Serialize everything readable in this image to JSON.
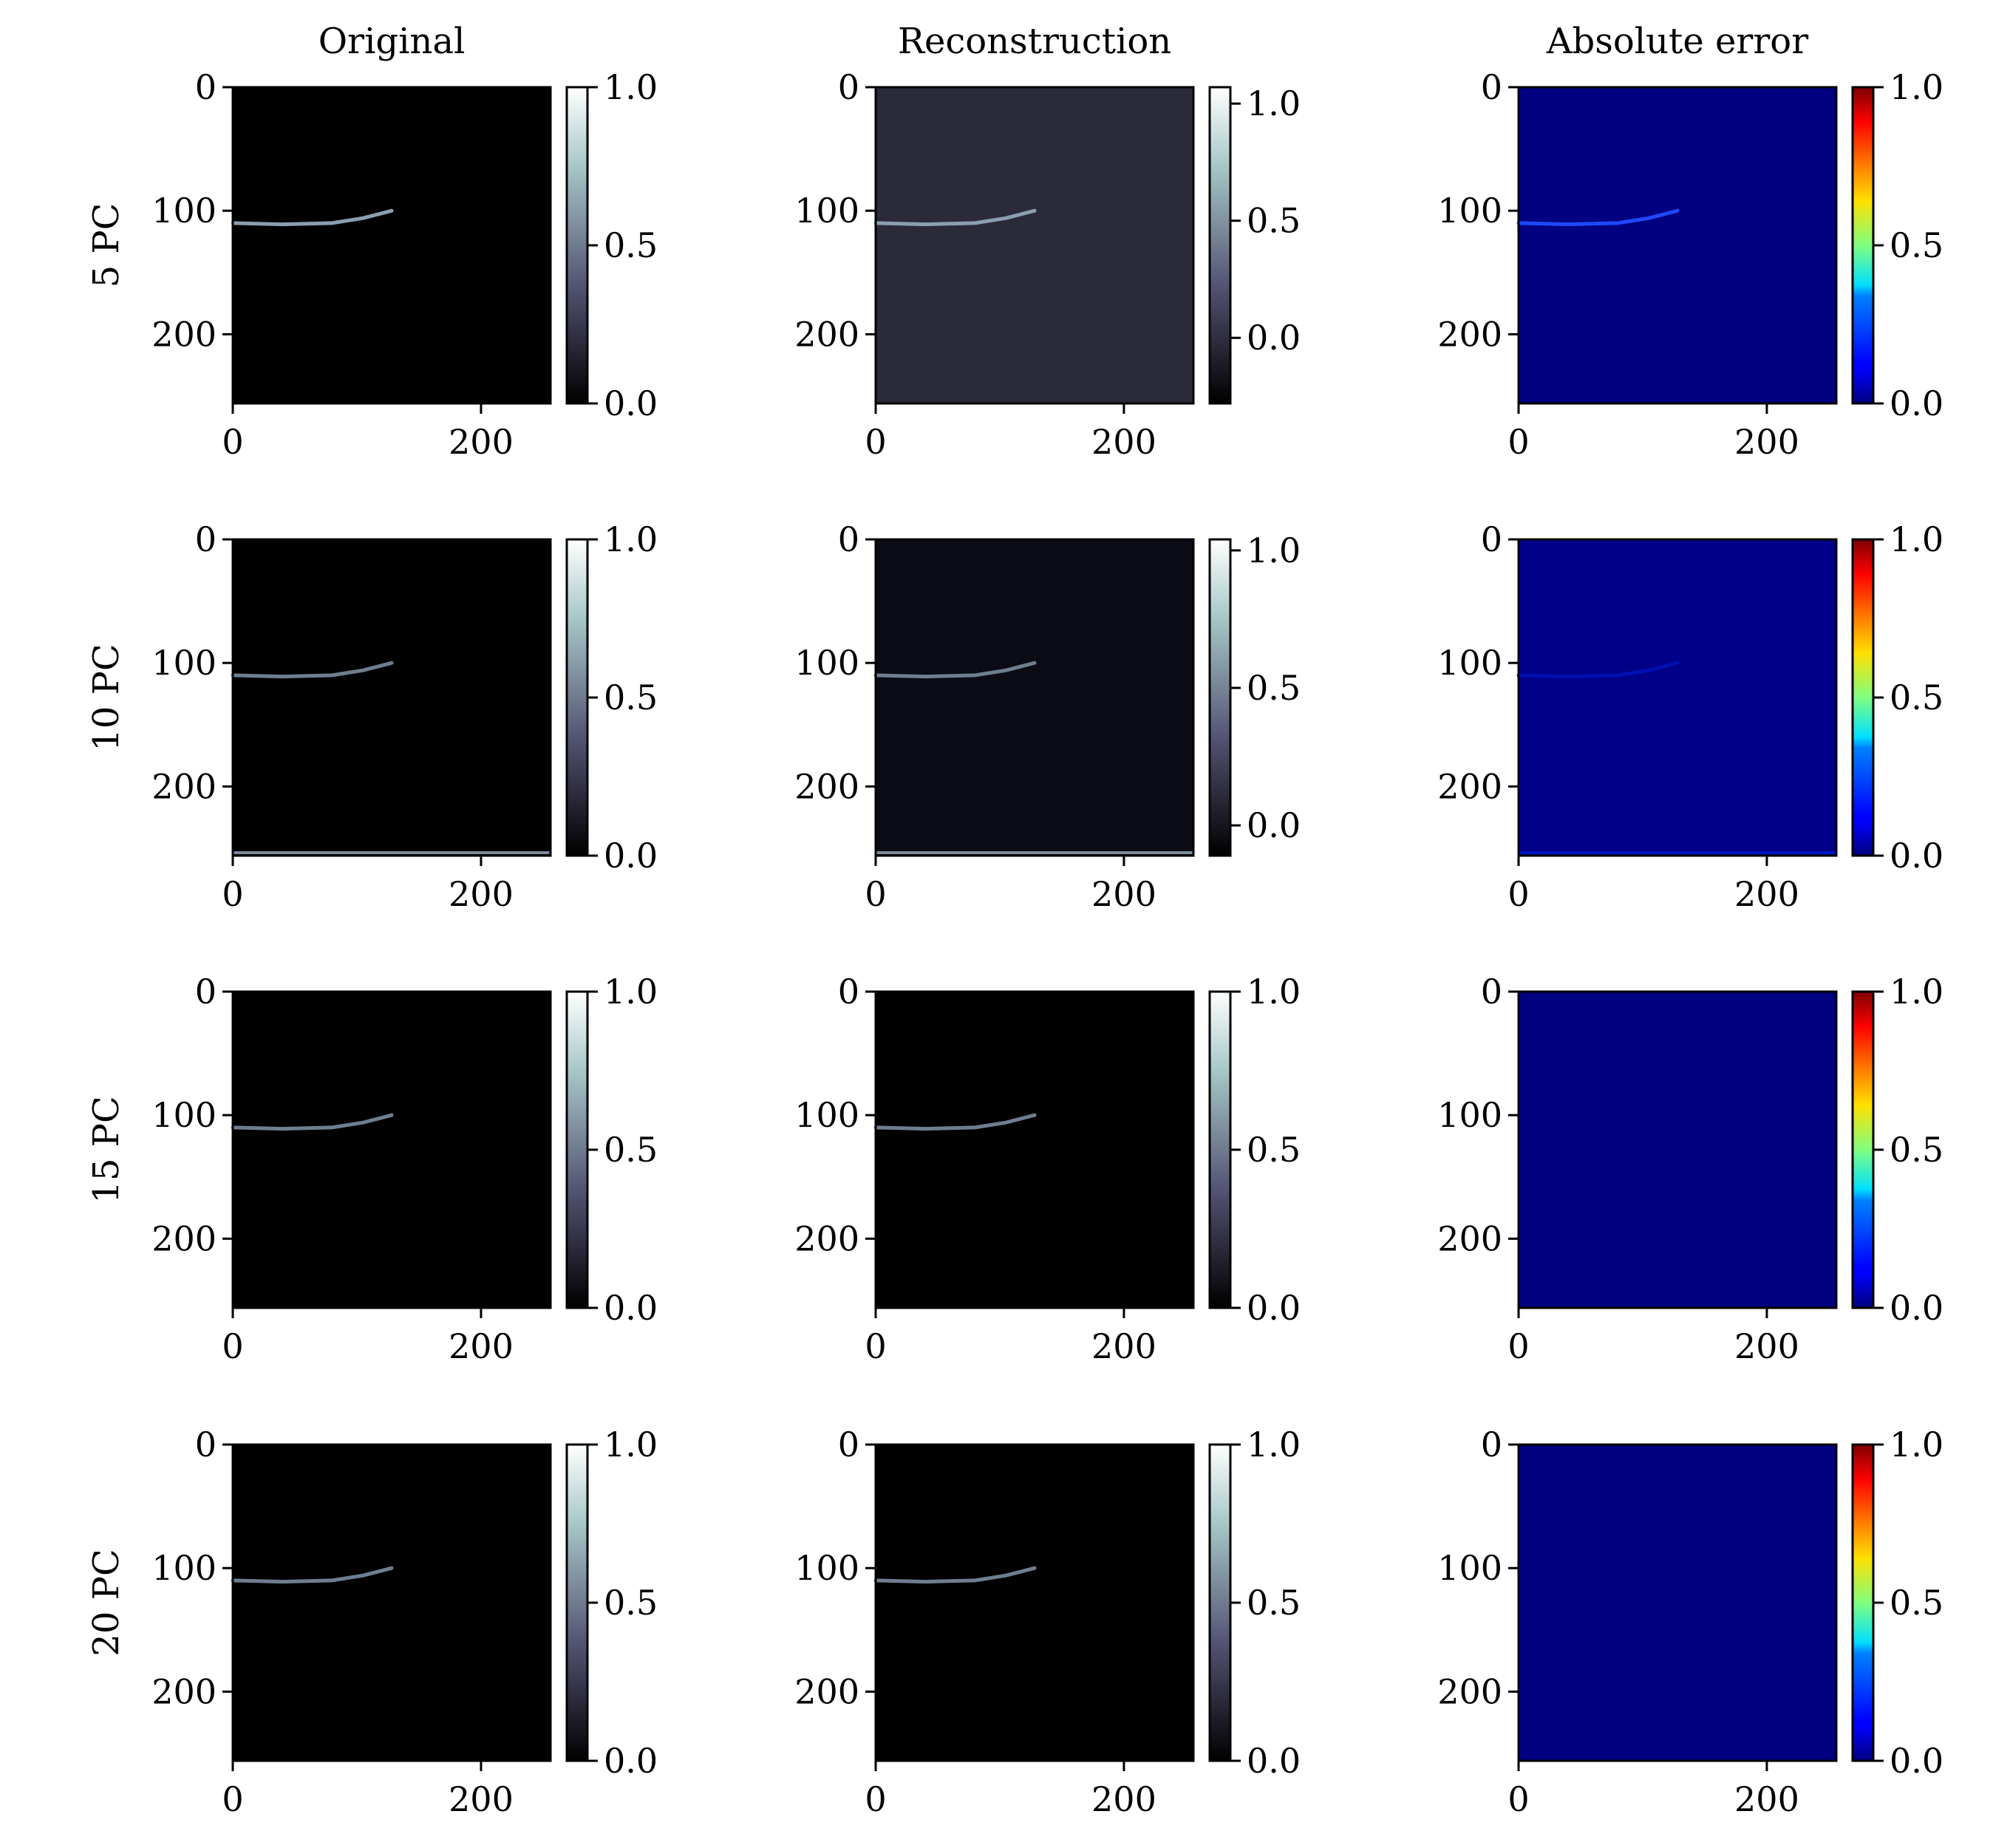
{
  "chart_data": {
    "type": "heatmap",
    "grid": {
      "columns": [
        {
          "title": "Original",
          "colormap": "bone"
        },
        {
          "title": "Reconstruction",
          "colormap": "bone"
        },
        {
          "title": "Absolute error",
          "colormap": "jet"
        }
      ],
      "rows": [
        {
          "label": "5 PC"
        },
        {
          "label": "10 PC"
        },
        {
          "label": "15 PC"
        },
        {
          "label": "20 PC"
        }
      ]
    },
    "image_axes": {
      "xlim": [
        0,
        256
      ],
      "ylim": [
        256,
        0
      ],
      "x_ticks": [
        0,
        200
      ],
      "y_ticks": [
        0,
        100,
        200
      ],
      "x_tick_labels": [
        "0",
        "200"
      ],
      "y_tick_labels": [
        "0",
        "100",
        "200"
      ]
    },
    "curve": {
      "description_points": [
        [
          0,
          110
        ],
        [
          40,
          111
        ],
        [
          80,
          110
        ],
        [
          105,
          106
        ],
        [
          128,
          100
        ]
      ]
    },
    "panels": [
      {
        "row": 0,
        "col": 0,
        "background": "#000000",
        "curve_color": "#8a9fb0",
        "curve_opacity": 1.0,
        "bottom_line": false,
        "cbar": {
          "vmin": 0.0,
          "vmax": 1.0,
          "ticks": [
            0.0,
            0.5,
            1.0
          ],
          "labels": [
            "0.0",
            "0.5",
            "1.0"
          ]
        }
      },
      {
        "row": 0,
        "col": 1,
        "background": "#2a2a38",
        "curve_color": "#8a9fb0",
        "curve_opacity": 1.0,
        "bottom_line": false,
        "cbar": {
          "vmin": -0.28,
          "vmax": 1.07,
          "ticks": [
            0.0,
            0.5,
            1.0
          ],
          "labels": [
            "0.0",
            "0.5",
            "1.0"
          ]
        }
      },
      {
        "row": 0,
        "col": 2,
        "background": "#000080",
        "curve_color": "#1f48ff",
        "curve_opacity": 1.0,
        "bottom_line": false,
        "cbar": {
          "vmin": 0.0,
          "vmax": 1.0,
          "ticks": [
            0.0,
            0.5,
            1.0
          ],
          "labels": [
            "0.0",
            "0.5",
            "1.0"
          ]
        }
      },
      {
        "row": 1,
        "col": 0,
        "background": "#000000",
        "curve_color": "#6d7e8f",
        "curve_opacity": 1.0,
        "bottom_line": true,
        "cbar": {
          "vmin": 0.0,
          "vmax": 1.0,
          "ticks": [
            0.0,
            0.5,
            1.0
          ],
          "labels": [
            "0.0",
            "0.5",
            "1.0"
          ]
        }
      },
      {
        "row": 1,
        "col": 1,
        "background": "#0a0b14",
        "curve_color": "#6d7e8f",
        "curve_opacity": 1.0,
        "bottom_line": true,
        "cbar": {
          "vmin": -0.11,
          "vmax": 1.04,
          "ticks": [
            0.0,
            0.5,
            1.0
          ],
          "labels": [
            "0.0",
            "0.5",
            "1.0"
          ]
        }
      },
      {
        "row": 1,
        "col": 2,
        "background": "#000088",
        "curve_color": "#0010b0",
        "curve_opacity": 1.0,
        "bottom_line": true,
        "cbar": {
          "vmin": 0.0,
          "vmax": 1.0,
          "ticks": [
            0.0,
            0.5,
            1.0
          ],
          "labels": [
            "0.0",
            "0.5",
            "1.0"
          ]
        }
      },
      {
        "row": 2,
        "col": 0,
        "background": "#000000",
        "curve_color": "#6d7e8f",
        "curve_opacity": 1.0,
        "bottom_line": false,
        "cbar": {
          "vmin": 0.0,
          "vmax": 1.0,
          "ticks": [
            0.0,
            0.5,
            1.0
          ],
          "labels": [
            "0.0",
            "0.5",
            "1.0"
          ]
        }
      },
      {
        "row": 2,
        "col": 1,
        "background": "#000000",
        "curve_color": "#6d7e8f",
        "curve_opacity": 1.0,
        "bottom_line": false,
        "cbar": {
          "vmin": 0.0,
          "vmax": 1.0,
          "ticks": [
            0.0,
            0.5,
            1.0
          ],
          "labels": [
            "0.0",
            "0.5",
            "1.0"
          ]
        }
      },
      {
        "row": 2,
        "col": 2,
        "background": "#000080",
        "curve_color": "#000080",
        "curve_opacity": 0.0,
        "bottom_line": false,
        "cbar": {
          "vmin": 0.0,
          "vmax": 1.0,
          "ticks": [
            0.0,
            0.5,
            1.0
          ],
          "labels": [
            "0.0",
            "0.5",
            "1.0"
          ]
        }
      },
      {
        "row": 3,
        "col": 0,
        "background": "#000000",
        "curve_color": "#6d7e8f",
        "curve_opacity": 1.0,
        "bottom_line": false,
        "cbar": {
          "vmin": 0.0,
          "vmax": 1.0,
          "ticks": [
            0.0,
            0.5,
            1.0
          ],
          "labels": [
            "0.0",
            "0.5",
            "1.0"
          ]
        }
      },
      {
        "row": 3,
        "col": 1,
        "background": "#000000",
        "curve_color": "#6d7e8f",
        "curve_opacity": 1.0,
        "bottom_line": false,
        "cbar": {
          "vmin": 0.0,
          "vmax": 1.0,
          "ticks": [
            0.0,
            0.5,
            1.0
          ],
          "labels": [
            "0.0",
            "0.5",
            "1.0"
          ]
        }
      },
      {
        "row": 3,
        "col": 2,
        "background": "#000080",
        "curve_color": "#000080",
        "curve_opacity": 0.0,
        "bottom_line": false,
        "cbar": {
          "vmin": 0.0,
          "vmax": 1.0,
          "ticks": [
            0.0,
            0.5,
            1.0
          ],
          "labels": [
            "0.0",
            "0.5",
            "1.0"
          ]
        }
      }
    ]
  }
}
